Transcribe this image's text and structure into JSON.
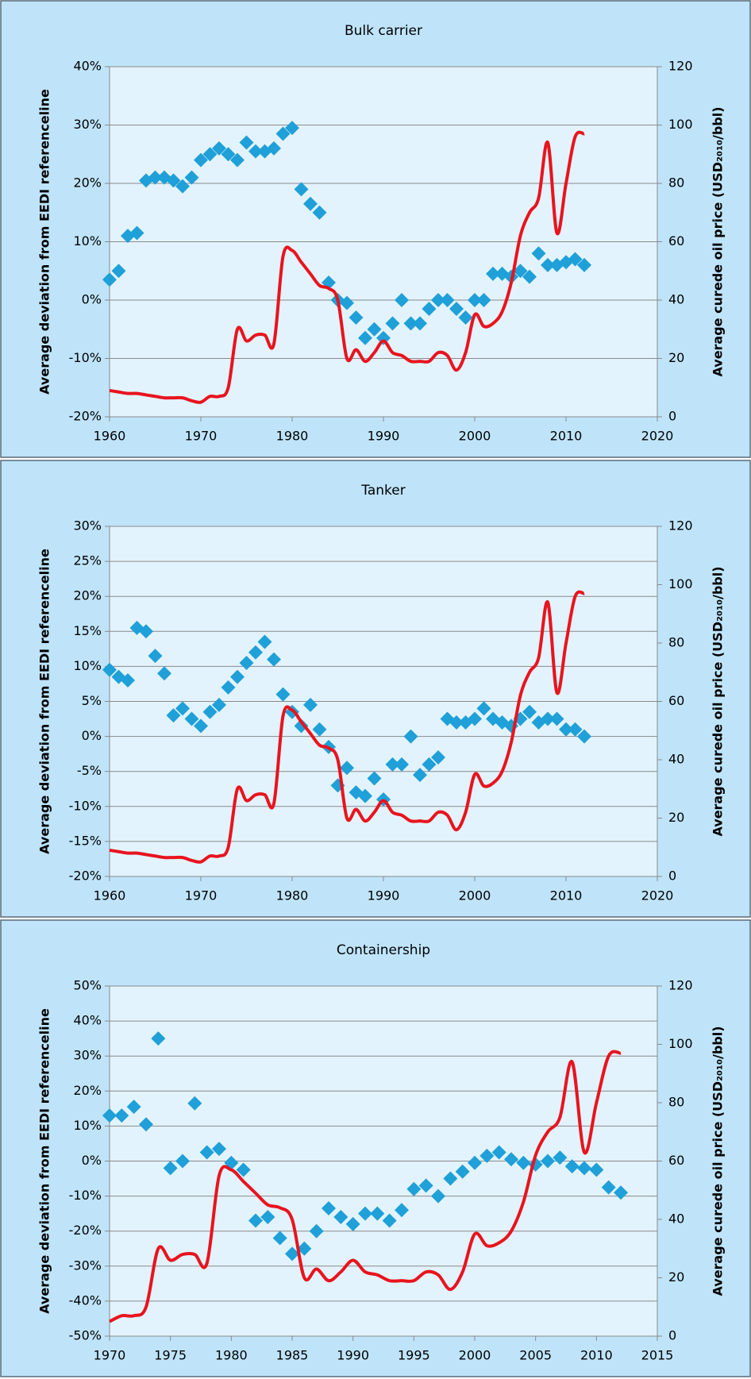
{
  "chart_data": [
    {
      "type": "scatter",
      "title": "Bulk carrier",
      "y_label": "Average deviation from EEDI referenceline",
      "y2_label": "Average curede oil price (USD₂₀₁₀/bbl)",
      "x": [
        1960,
        1961,
        1962,
        1963,
        1964,
        1965,
        1966,
        1967,
        1968,
        1969,
        1970,
        1971,
        1972,
        1973,
        1974,
        1975,
        1976,
        1977,
        1978,
        1979,
        1980,
        1981,
        1982,
        1983,
        1984,
        1985,
        1986,
        1987,
        1988,
        1989,
        1990,
        1991,
        1992,
        1993,
        1994,
        1995,
        1996,
        1997,
        1998,
        1999,
        2000,
        2001,
        2002,
        2003,
        2004,
        2005,
        2006,
        2007,
        2008,
        2009,
        2010,
        2011,
        2012
      ],
      "series": [
        {
          "type": "scatter",
          "color": "#1fa0d8",
          "values": [
            3.5,
            5,
            11,
            11.5,
            20.5,
            21,
            21,
            20.5,
            19.5,
            21,
            24,
            25,
            26,
            25,
            24,
            27,
            25.5,
            25.5,
            26,
            28.5,
            29.5,
            19,
            16.5,
            15,
            3,
            0,
            -0.5,
            -3,
            -6.5,
            -5,
            -6.5,
            -4,
            0,
            -4,
            -4,
            -1.5,
            0,
            0,
            -1.5,
            -3,
            0,
            0,
            4.5,
            4.5,
            4,
            5,
            4,
            8,
            6,
            6,
            6.5,
            7,
            6
          ]
        },
        {
          "type": "line",
          "axis": "y2",
          "color": "#e8141e",
          "values": [
            9,
            8.5,
            8,
            8,
            7.5,
            7,
            6.5,
            6.5,
            6.5,
            5.5,
            5,
            7,
            7,
            10,
            30,
            26,
            28,
            28,
            25,
            55,
            57,
            53,
            49,
            45,
            44,
            40,
            20,
            23,
            19,
            22,
            26,
            22,
            21,
            19,
            19,
            19,
            22,
            21,
            16,
            22,
            35,
            31,
            32,
            36,
            46,
            62,
            70,
            75,
            94,
            63,
            80,
            96,
            97
          ]
        }
      ],
      "xlim": [
        1960,
        2020
      ],
      "xticks": [
        1960,
        1970,
        1980,
        1990,
        2000,
        2010,
        2020
      ],
      "ylim": [
        -20,
        40
      ],
      "yticks": [
        {
          "value": -20,
          "label": "-20%"
        },
        {
          "value": -10,
          "label": "-10%"
        },
        {
          "value": 0,
          "label": "0%"
        },
        {
          "value": 10,
          "label": "10%"
        },
        {
          "value": 20,
          "label": "20%"
        },
        {
          "value": 30,
          "label": "30%"
        },
        {
          "value": 40,
          "label": "40%"
        }
      ],
      "y2lim": [
        0,
        120
      ],
      "y2ticks": [
        0,
        20,
        40,
        60,
        80,
        100,
        120
      ],
      "grid": true
    },
    {
      "type": "scatter",
      "title": "Tanker",
      "y_label": "Average deviation from EEDI referenceline",
      "y2_label": "Average curede oil price (USD₂₀₁₀/bbl)",
      "x": [
        1960,
        1961,
        1962,
        1963,
        1964,
        1965,
        1966,
        1967,
        1968,
        1969,
        1970,
        1971,
        1972,
        1973,
        1974,
        1975,
        1976,
        1977,
        1978,
        1979,
        1980,
        1981,
        1982,
        1983,
        1984,
        1985,
        1986,
        1987,
        1988,
        1989,
        1990,
        1991,
        1992,
        1993,
        1994,
        1995,
        1996,
        1997,
        1998,
        1999,
        2000,
        2001,
        2002,
        2003,
        2004,
        2005,
        2006,
        2007,
        2008,
        2009,
        2010,
        2011,
        2012
      ],
      "series": [
        {
          "type": "scatter",
          "color": "#1fa0d8",
          "values": [
            9.5,
            8.5,
            8,
            15.5,
            15,
            11.5,
            9,
            3,
            4,
            2.5,
            1.5,
            3.5,
            4.5,
            7,
            8.5,
            10.5,
            12,
            13.5,
            11,
            6,
            3.5,
            1.5,
            4.5,
            1,
            -1.5,
            -7,
            -4.5,
            -8,
            -8.5,
            -6,
            -9,
            -4,
            -4,
            0,
            -5.5,
            -4,
            -3,
            2.5,
            2,
            2,
            2.5,
            4,
            2.5,
            2,
            1.5,
            2.5,
            3.5,
            2,
            2.5,
            2.5,
            1,
            1,
            0
          ]
        },
        {
          "type": "line",
          "axis": "y2",
          "color": "#e8141e",
          "values": [
            9,
            8.5,
            8,
            8,
            7.5,
            7,
            6.5,
            6.5,
            6.5,
            5.5,
            5,
            7,
            7,
            10,
            30,
            26,
            28,
            28,
            25,
            55,
            57,
            53,
            49,
            45,
            44,
            40,
            20,
            23,
            19,
            22,
            26,
            22,
            21,
            19,
            19,
            19,
            22,
            21,
            16,
            22,
            35,
            31,
            32,
            36,
            46,
            62,
            70,
            75,
            94,
            63,
            80,
            96,
            97
          ]
        }
      ],
      "xlim": [
        1960,
        2020
      ],
      "xticks": [
        1960,
        1970,
        1980,
        1990,
        2000,
        2010,
        2020
      ],
      "ylim": [
        -20,
        30
      ],
      "yticks": [
        {
          "value": -20,
          "label": "-20%"
        },
        {
          "value": -15,
          "label": "-15%"
        },
        {
          "value": -10,
          "label": "-10%"
        },
        {
          "value": -5,
          "label": "-5%"
        },
        {
          "value": 0,
          "label": "0%"
        },
        {
          "value": 5,
          "label": "5%"
        },
        {
          "value": 10,
          "label": "10%"
        },
        {
          "value": 15,
          "label": "15%"
        },
        {
          "value": 20,
          "label": "20%"
        },
        {
          "value": 25,
          "label": "25%"
        },
        {
          "value": 30,
          "label": "30%"
        }
      ],
      "y2lim": [
        0,
        120
      ],
      "y2ticks": [
        0,
        20,
        40,
        60,
        80,
        100,
        120
      ],
      "grid": true
    },
    {
      "type": "scatter",
      "title": "Containership",
      "y_label": "Average deviation from EEDI referenceline",
      "y2_label": "Average curede oil price (USD₂₀₁₀/bbl)",
      "x": [
        1970,
        1971,
        1972,
        1973,
        1974,
        1975,
        1976,
        1977,
        1978,
        1979,
        1980,
        1981,
        1982,
        1983,
        1984,
        1985,
        1986,
        1987,
        1988,
        1989,
        1990,
        1991,
        1992,
        1993,
        1994,
        1995,
        1996,
        1997,
        1998,
        1999,
        2000,
        2001,
        2002,
        2003,
        2004,
        2005,
        2006,
        2007,
        2008,
        2009,
        2010,
        2011,
        2012
      ],
      "series": [
        {
          "type": "scatter",
          "color": "#1fa0d8",
          "values": [
            13,
            13,
            15.5,
            10.5,
            35,
            -2,
            0,
            16.5,
            2.5,
            3.5,
            -0.5,
            -2.5,
            -17,
            -16,
            -22,
            -26.5,
            -25,
            -20,
            -13.5,
            -16,
            -18,
            -15,
            -15,
            -17,
            -14,
            -8,
            -7,
            -10,
            -5,
            -3,
            -0.5,
            1.5,
            2.5,
            0.5,
            -0.5,
            -1,
            0,
            1,
            -1.5,
            -2,
            -2.5,
            -7.5,
            -9
          ]
        },
        {
          "type": "line",
          "axis": "y2",
          "color": "#e8141e",
          "values": [
            5,
            7,
            7,
            10,
            30,
            26,
            28,
            28,
            25,
            55,
            57,
            53,
            49,
            45,
            44,
            40,
            20,
            23,
            19,
            22,
            26,
            22,
            21,
            19,
            19,
            19,
            22,
            21,
            16,
            22,
            35,
            31,
            32,
            36,
            46,
            62,
            70,
            75,
            94,
            63,
            80,
            96,
            97
          ]
        }
      ],
      "xlim": [
        1970,
        2015
      ],
      "xticks": [
        1970,
        1975,
        1980,
        1985,
        1990,
        1995,
        2000,
        2005,
        2010,
        2015
      ],
      "ylim": [
        -50,
        50
      ],
      "yticks": [
        {
          "value": -50,
          "label": "-50%"
        },
        {
          "value": -40,
          "label": "-40%"
        },
        {
          "value": -30,
          "label": "-30%"
        },
        {
          "value": -20,
          "label": "-20%"
        },
        {
          "value": -10,
          "label": "-10%"
        },
        {
          "value": 0,
          "label": "0%"
        },
        {
          "value": 10,
          "label": "10%"
        },
        {
          "value": 20,
          "label": "20%"
        },
        {
          "value": 30,
          "label": "30%"
        },
        {
          "value": 40,
          "label": "40%"
        },
        {
          "value": 50,
          "label": "50%"
        }
      ],
      "y2lim": [
        0,
        120
      ],
      "y2ticks": [
        0,
        20,
        40,
        60,
        80,
        100,
        120
      ],
      "grid": true
    }
  ]
}
